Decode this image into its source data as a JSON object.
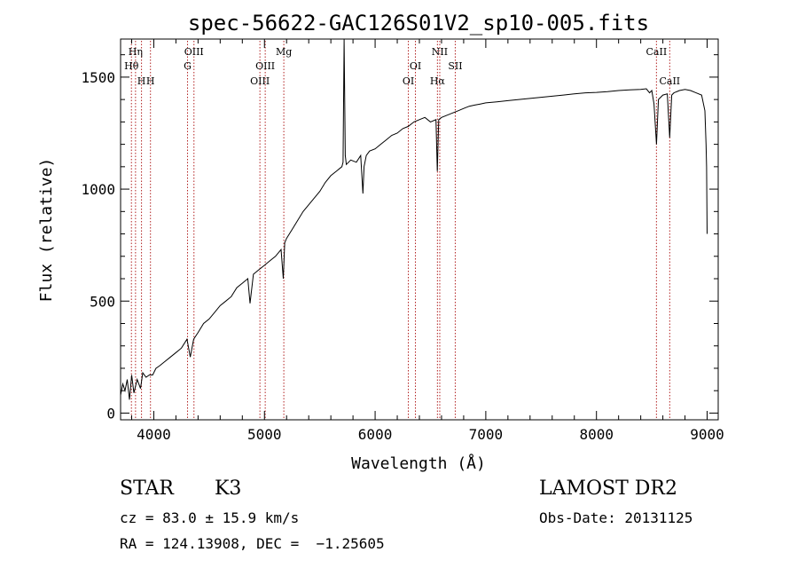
{
  "chart_data": {
    "type": "line",
    "title": "spec-56622-GAC126S01V2_sp10-005.fits",
    "xlabel": "Wavelength (Å)",
    "ylabel": "Flux (relative)",
    "xlim": [
      3700,
      9100
    ],
    "ylim": [
      -30,
      1670
    ],
    "x_ticks": [
      4000,
      5000,
      6000,
      7000,
      8000,
      9000
    ],
    "y_ticks": [
      0,
      500,
      1000,
      1500
    ],
    "grid": false,
    "series": [
      {
        "x": [
          3700,
          3720,
          3740,
          3760,
          3780,
          3800,
          3820,
          3850,
          3880,
          3900,
          3930,
          3960,
          3990,
          4020,
          4050,
          4100,
          4150,
          4200,
          4250,
          4300,
          4330,
          4360,
          4400,
          4450,
          4500,
          4550,
          4600,
          4650,
          4700,
          4750,
          4800,
          4850,
          4870,
          4900,
          4950,
          5000,
          5050,
          5100,
          5150,
          5170,
          5183,
          5200,
          5250,
          5300,
          5350,
          5400,
          5450,
          5500,
          5550,
          5600,
          5650,
          5700,
          5710,
          5720,
          5730,
          5740,
          5780,
          5830,
          5870,
          5890,
          5900,
          5920,
          5950,
          6000,
          6050,
          6100,
          6150,
          6200,
          6250,
          6300,
          6350,
          6400,
          6450,
          6500,
          6550,
          6562,
          6575,
          6600,
          6650,
          6700,
          6750,
          6800,
          6850,
          6900,
          6950,
          7000,
          7100,
          7200,
          7300,
          7400,
          7500,
          7600,
          7700,
          7800,
          7900,
          8000,
          8100,
          8200,
          8300,
          8400,
          8450,
          8480,
          8500,
          8520,
          8542,
          8560,
          8600,
          8640,
          8662,
          8680,
          8700,
          8750,
          8800,
          8850,
          8900,
          8950,
          8980,
          8990,
          8995,
          9000
        ],
        "y": [
          80,
          130,
          100,
          150,
          60,
          170,
          90,
          150,
          110,
          180,
          160,
          170,
          170,
          200,
          210,
          230,
          250,
          270,
          290,
          330,
          250,
          330,
          360,
          400,
          420,
          450,
          480,
          500,
          520,
          560,
          580,
          600,
          490,
          620,
          640,
          660,
          680,
          700,
          730,
          600,
          760,
          780,
          820,
          860,
          900,
          930,
          960,
          990,
          1030,
          1060,
          1080,
          1100,
          1120,
          1668,
          1150,
          1110,
          1130,
          1120,
          1150,
          980,
          1100,
          1150,
          1170,
          1180,
          1200,
          1220,
          1240,
          1250,
          1270,
          1280,
          1300,
          1310,
          1320,
          1300,
          1310,
          1080,
          1310,
          1320,
          1330,
          1340,
          1350,
          1360,
          1370,
          1375,
          1380,
          1385,
          1390,
          1395,
          1400,
          1405,
          1410,
          1415,
          1420,
          1425,
          1430,
          1432,
          1435,
          1440,
          1443,
          1445,
          1448,
          1430,
          1440,
          1380,
          1200,
          1400,
          1420,
          1425,
          1230,
          1420,
          1430,
          1440,
          1445,
          1440,
          1430,
          1420,
          1350,
          1200,
          1100,
          800
        ]
      }
    ],
    "line_markers": [
      {
        "label": "Hη",
        "x": 3835,
        "row": 0
      },
      {
        "label": "Hθ",
        "x": 3798,
        "row": 1
      },
      {
        "label": "H",
        "x": 3889,
        "row": 2
      },
      {
        "label": "H",
        "x": 3970,
        "row": 2
      },
      {
        "label": "OIII",
        "x": 4363,
        "row": 0
      },
      {
        "label": "G",
        "x": 4305,
        "row": 1
      },
      {
        "label": "Mg",
        "x": 5175,
        "row": 0
      },
      {
        "label": "OIII",
        "x": 5007,
        "row": 1
      },
      {
        "label": "OIII",
        "x": 4959,
        "row": 2
      },
      {
        "label": "NII",
        "x": 6584,
        "row": 0
      },
      {
        "label": "OI",
        "x": 6364,
        "row": 1
      },
      {
        "label": "SII",
        "x": 6724,
        "row": 1
      },
      {
        "label": "OI",
        "x": 6300,
        "row": 2
      },
      {
        "label": "Hα",
        "x": 6563,
        "row": 2
      },
      {
        "label": "CaII",
        "x": 8542,
        "row": 0
      },
      {
        "label": "CaII",
        "x": 8662,
        "row": 2
      }
    ]
  },
  "info": {
    "class": "STAR",
    "subclass": "K3",
    "survey": "LAMOST DR2",
    "cz": "cz = 83.0 ± 15.9 km/s",
    "obs_date": "Obs-Date: 20131125",
    "radec": "RA = 124.13908, DEC =  −1.25605"
  },
  "colors": {
    "spectrum": "#000000",
    "marker_line": "#b22222",
    "axes": "#000000"
  }
}
